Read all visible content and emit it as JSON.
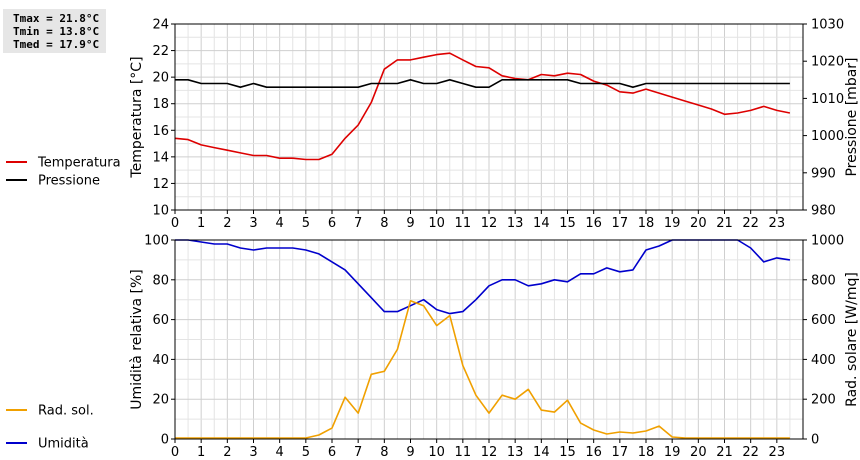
{
  "stats": {
    "tmax": "Tmax = 21.8°C",
    "tmin": "Tmin = 13.8°C",
    "tmed": "Tmed = 17.9°C"
  },
  "chart_data": [
    {
      "type": "line",
      "grid": true,
      "legend_placement": "left",
      "x": [
        0,
        0.5,
        1,
        1.5,
        2,
        2.5,
        3,
        3.5,
        4,
        4.5,
        5,
        5.5,
        6,
        6.5,
        7,
        7.5,
        8,
        8.5,
        9,
        9.5,
        10,
        10.5,
        11,
        11.5,
        12,
        12.5,
        13,
        13.5,
        14,
        14.5,
        15,
        15.5,
        16,
        16.5,
        17,
        17.5,
        18,
        18.5,
        19,
        19.5,
        20,
        20.5,
        21,
        21.5,
        22,
        22.5,
        23,
        23.5
      ],
      "xlim": [
        0,
        24
      ],
      "xticks": [
        "0",
        "1",
        "2",
        "3",
        "4",
        "5",
        "6",
        "7",
        "8",
        "9",
        "10",
        "11",
        "12",
        "13",
        "14",
        "15",
        "16",
        "17",
        "18",
        "19",
        "20",
        "21",
        "22",
        "23"
      ],
      "ylabel": "Temperatura [°C]",
      "ylim": [
        10,
        24
      ],
      "yticks": [
        "10",
        "12",
        "14",
        "16",
        "18",
        "20",
        "22",
        "24"
      ],
      "y2label": "Pressione [mbar]",
      "y2lim": [
        980,
        1030
      ],
      "y2ticks": [
        "980",
        "990",
        "1000",
        "1010",
        "1020",
        "1030"
      ],
      "series": [
        {
          "name": "Temperatura",
          "axis": "left",
          "color": "#dd0000",
          "values": [
            15.4,
            15.3,
            14.9,
            14.7,
            14.5,
            14.3,
            14.1,
            14.1,
            13.9,
            13.9,
            13.8,
            13.8,
            14.2,
            15.4,
            16.4,
            18.1,
            20.6,
            21.3,
            21.3,
            21.5,
            21.7,
            21.8,
            21.3,
            20.8,
            20.7,
            20.1,
            19.9,
            19.8,
            20.2,
            20.1,
            20.3,
            20.2,
            19.7,
            19.4,
            18.9,
            18.8,
            19.1,
            18.8,
            18.5,
            18.2,
            17.9,
            17.6,
            17.2,
            17.3,
            17.5,
            17.8,
            17.5,
            17.3
          ]
        },
        {
          "name": "Pressione",
          "axis": "right",
          "color": "#000000",
          "values": [
            1015,
            1015,
            1014,
            1014,
            1014,
            1013,
            1014,
            1013,
            1013,
            1013,
            1013,
            1013,
            1013,
            1013,
            1013,
            1014,
            1014,
            1014,
            1015,
            1014,
            1014,
            1015,
            1014,
            1013,
            1013,
            1015,
            1015,
            1015,
            1015,
            1015,
            1015,
            1014,
            1014,
            1014,
            1014,
            1013,
            1014,
            1014,
            1014,
            1014,
            1014,
            1014,
            1014,
            1014,
            1014,
            1014,
            1014,
            1014
          ]
        }
      ]
    },
    {
      "type": "line",
      "grid": true,
      "legend_placement": "left",
      "x": [
        0,
        0.5,
        1,
        1.5,
        2,
        2.5,
        3,
        3.5,
        4,
        4.5,
        5,
        5.5,
        6,
        6.5,
        7,
        7.5,
        8,
        8.5,
        9,
        9.5,
        10,
        10.5,
        11,
        11.5,
        12,
        12.5,
        13,
        13.5,
        14,
        14.5,
        15,
        15.5,
        16,
        16.5,
        17,
        17.5,
        18,
        18.5,
        19,
        19.5,
        20,
        20.5,
        21,
        21.5,
        22,
        22.5,
        23,
        23.5
      ],
      "xlim": [
        0,
        24
      ],
      "xticks": [
        "0",
        "1",
        "2",
        "3",
        "4",
        "5",
        "6",
        "7",
        "8",
        "9",
        "10",
        "11",
        "12",
        "13",
        "14",
        "15",
        "16",
        "17",
        "18",
        "19",
        "20",
        "21",
        "22",
        "23"
      ],
      "ylabel": "Umidità relativa [%]",
      "ylim": [
        0,
        100
      ],
      "yticks": [
        "0",
        "20",
        "40",
        "60",
        "80",
        "100"
      ],
      "y2label": "Rad. solare [W/mq]",
      "y2lim": [
        0,
        1000
      ],
      "y2ticks": [
        "0",
        "200",
        "400",
        "600",
        "800",
        "1000"
      ],
      "series": [
        {
          "name": "Umidità",
          "axis": "left",
          "color": "#0000cc",
          "values": [
            100,
            100,
            99,
            98,
            98,
            96,
            95,
            96,
            96,
            96,
            95,
            93,
            89,
            85,
            78,
            71,
            64,
            64,
            67,
            70,
            65,
            63,
            64,
            70,
            77,
            80,
            80,
            77,
            78,
            80,
            79,
            83,
            83,
            86,
            84,
            85,
            95,
            97,
            100,
            100,
            100,
            100,
            100,
            100,
            96,
            89,
            91,
            90
          ]
        },
        {
          "name": "Rad. sol.",
          "axis": "right",
          "color": "#f0a000",
          "values": [
            5,
            5,
            5,
            5,
            5,
            5,
            5,
            5,
            5,
            5,
            5,
            20,
            55,
            210,
            130,
            325,
            340,
            450,
            695,
            670,
            570,
            620,
            370,
            220,
            130,
            220,
            200,
            250,
            145,
            135,
            195,
            80,
            45,
            25,
            35,
            30,
            40,
            65,
            10,
            5,
            5,
            5,
            5,
            5,
            5,
            5,
            5,
            5
          ]
        }
      ]
    }
  ]
}
